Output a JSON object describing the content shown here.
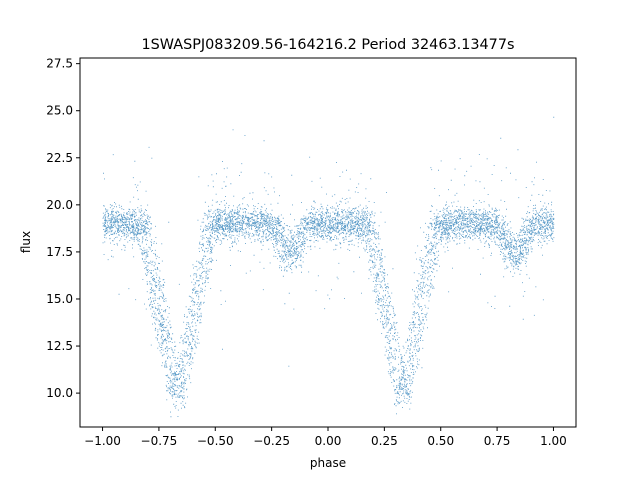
{
  "chart_data": {
    "type": "scatter",
    "title": "1SWASPJ083209.56-164216.2 Period 32463.13477s",
    "xlabel": "phase",
    "ylabel": "flux",
    "xlim": [
      -1.1,
      1.1
    ],
    "ylim": [
      8.2,
      27.8
    ],
    "xticks": [
      -1.0,
      -0.75,
      -0.5,
      -0.25,
      0.0,
      0.25,
      0.5,
      0.75,
      1.0
    ],
    "xtick_labels": [
      "−1.00",
      "−0.75",
      "−0.50",
      "−0.25",
      "0.00",
      "0.25",
      "0.50",
      "0.75",
      "1.00"
    ],
    "yticks": [
      10.0,
      12.5,
      15.0,
      17.5,
      20.0,
      22.5,
      25.0,
      27.5
    ],
    "ytick_labels": [
      "10.0",
      "12.5",
      "15.0",
      "17.5",
      "20.0",
      "22.5",
      "25.0",
      "27.5"
    ],
    "grid": false,
    "marker_color": "#1f77b4",
    "light_curve": {
      "phase_range": [
        -1.0,
        1.0
      ],
      "baseline_flux": 19.0,
      "primary_eclipse": {
        "center_phase": -0.67,
        "repeat_phase": 0.33,
        "min_flux": 9.7,
        "half_width_phase": 0.15
      },
      "secondary_eclipse": {
        "center_phase": -0.17,
        "repeat_phase": 0.83,
        "min_flux": 17.3,
        "half_width_phase": 0.1
      }
    }
  }
}
